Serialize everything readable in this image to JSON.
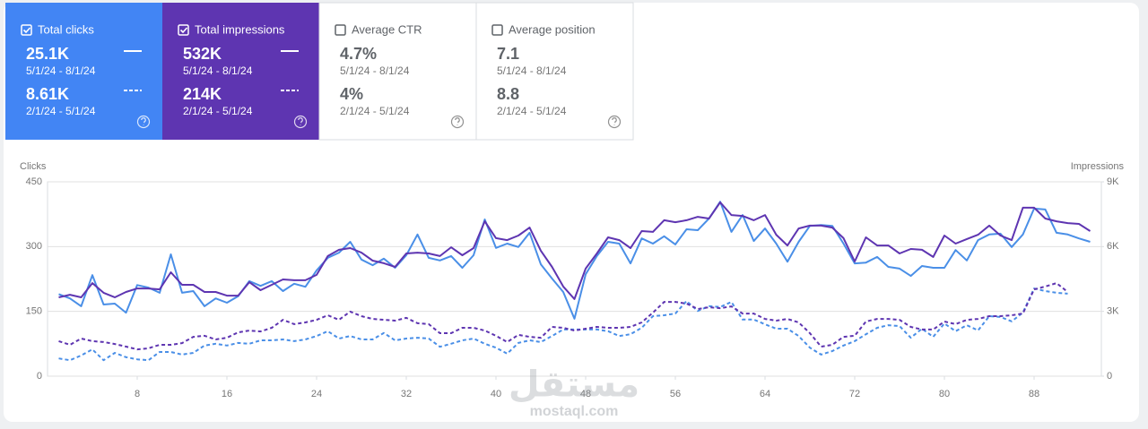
{
  "cards": [
    {
      "label": "Total clicks",
      "checked": true,
      "color": "#4285f4",
      "current": {
        "value": "25.1K",
        "range": "5/1/24 - 8/1/24"
      },
      "previous": {
        "value": "8.61K",
        "range": "2/1/24 - 5/1/24"
      }
    },
    {
      "label": "Total impressions",
      "checked": true,
      "color": "#5e35b1",
      "current": {
        "value": "532K",
        "range": "5/1/24 - 8/1/24"
      },
      "previous": {
        "value": "214K",
        "range": "2/1/24 - 5/1/24"
      }
    },
    {
      "label": "Average CTR",
      "checked": false,
      "color": "#ffffff",
      "current": {
        "value": "4.7%",
        "range": "5/1/24 - 8/1/24"
      },
      "previous": {
        "value": "4%",
        "range": "2/1/24 - 5/1/24"
      }
    },
    {
      "label": "Average position",
      "checked": false,
      "color": "#ffffff",
      "current": {
        "value": "7.1",
        "range": "5/1/24 - 8/1/24"
      },
      "previous": {
        "value": "8.8",
        "range": "2/1/24 - 5/1/24"
      }
    }
  ],
  "chart_data": {
    "type": "line",
    "ylabel": "Clicks",
    "y2label": "Impressions",
    "x": [
      1,
      2,
      3,
      4,
      5,
      6,
      7,
      8,
      9,
      10,
      11,
      12,
      13,
      14,
      15,
      16,
      17,
      18,
      19,
      20,
      21,
      22,
      23,
      24,
      25,
      26,
      27,
      28,
      29,
      30,
      31,
      32,
      33,
      34,
      35,
      36,
      37,
      38,
      39,
      40,
      41,
      42,
      43,
      44,
      45,
      46,
      47,
      48,
      49,
      50,
      51,
      52,
      53,
      54,
      55,
      56,
      57,
      58,
      59,
      60,
      61,
      62,
      63,
      64,
      65,
      66,
      67,
      68,
      69,
      70,
      71,
      72,
      73,
      74,
      75,
      76,
      77,
      78,
      79,
      80,
      81,
      82,
      83,
      84,
      85,
      86,
      87,
      88,
      89,
      90,
      91,
      92,
      93
    ],
    "xlim": [
      0,
      94
    ],
    "xticks": [
      8,
      16,
      24,
      32,
      40,
      48,
      56,
      64,
      72,
      80,
      88
    ],
    "ylim": [
      0,
      450
    ],
    "yticks": [
      0,
      150,
      300,
      450
    ],
    "y2lim": [
      0,
      9000
    ],
    "y2ticks": [
      {
        "value": 0,
        "label": "0"
      },
      {
        "value": 3000,
        "label": "3K"
      },
      {
        "value": 6000,
        "label": "6K"
      },
      {
        "value": 9000,
        "label": "9K"
      }
    ],
    "grid": true,
    "series": [
      {
        "color": "#4a8fe7",
        "dashed": true,
        "values": [
          41,
          37,
          48,
          62,
          37,
          54,
          44,
          39,
          37,
          56,
          56,
          50,
          54,
          71,
          75,
          71,
          77,
          75,
          83,
          83,
          85,
          81,
          85,
          93,
          104,
          87,
          93,
          85,
          85,
          100,
          83,
          87,
          89,
          87,
          68,
          75,
          83,
          87,
          75,
          66,
          52,
          77,
          83,
          79,
          93,
          108,
          108,
          108,
          108,
          104,
          93,
          97,
          112,
          139,
          141,
          145,
          174,
          151,
          162,
          160,
          172,
          131,
          131,
          120,
          110,
          110,
          93,
          66,
          50,
          58,
          71,
          81,
          97,
          112,
          118,
          116,
          89,
          110,
          91,
          122,
          104,
          118,
          106,
          139,
          137,
          127,
          147,
          203,
          197,
          193,
          191,
          null,
          null
        ]
      },
      {
        "color": "#5e35b1",
        "dashed": true,
        "axis": "y2",
        "values": [
          1620,
          1450,
          1740,
          1620,
          1580,
          1490,
          1370,
          1240,
          1290,
          1450,
          1450,
          1530,
          1820,
          1870,
          1700,
          1780,
          2030,
          2110,
          2070,
          2240,
          2610,
          2410,
          2490,
          2610,
          2820,
          2610,
          2990,
          2780,
          2650,
          2610,
          2570,
          2700,
          2450,
          2410,
          1990,
          1990,
          2240,
          2240,
          2110,
          1870,
          1580,
          1910,
          1820,
          1780,
          2280,
          2240,
          2110,
          2200,
          2280,
          2240,
          2240,
          2280,
          2490,
          2940,
          3440,
          3440,
          3360,
          3110,
          3190,
          3150,
          3230,
          2900,
          2900,
          2650,
          2570,
          2650,
          2490,
          1990,
          1370,
          1450,
          1820,
          1870,
          2530,
          2650,
          2650,
          2610,
          2280,
          2160,
          2160,
          2530,
          2410,
          2610,
          2650,
          2780,
          2780,
          2820,
          2900,
          4020,
          4150,
          4310,
          3900,
          null,
          null
        ]
      },
      {
        "color": "#4a8fe7",
        "dashed": false,
        "values": [
          190,
          180,
          162,
          234,
          166,
          168,
          147,
          211,
          205,
          193,
          282,
          193,
          197,
          162,
          180,
          170,
          185,
          220,
          209,
          220,
          197,
          214,
          207,
          245,
          274,
          286,
          311,
          270,
          257,
          272,
          251,
          280,
          328,
          274,
          268,
          278,
          251,
          280,
          363,
          297,
          307,
          299,
          332,
          259,
          226,
          195,
          133,
          236,
          278,
          311,
          307,
          261,
          319,
          307,
          324,
          305,
          340,
          338,
          365,
          404,
          334,
          373,
          313,
          342,
          307,
          265,
          311,
          348,
          350,
          348,
          307,
          261,
          263,
          276,
          253,
          249,
          232,
          255,
          251,
          251,
          292,
          268,
          315,
          328,
          330,
          299,
          328,
          388,
          386,
          332,
          328,
          319,
          311
        ]
      },
      {
        "color": "#5e35b1",
        "dashed": false,
        "axis": "y2",
        "values": [
          3650,
          3770,
          3650,
          4310,
          3860,
          3650,
          3900,
          4060,
          4060,
          4020,
          4810,
          4230,
          4230,
          3900,
          3900,
          3730,
          3730,
          4350,
          3980,
          4230,
          4480,
          4440,
          4440,
          4690,
          5560,
          5850,
          5930,
          5720,
          5350,
          5230,
          5060,
          5680,
          5720,
          5680,
          5560,
          5970,
          5600,
          5930,
          7170,
          6390,
          6300,
          6510,
          6880,
          5810,
          5060,
          4150,
          3570,
          4980,
          5680,
          6430,
          6300,
          5930,
          6720,
          6680,
          7220,
          7130,
          7220,
          7380,
          7300,
          8050,
          7460,
          7420,
          7220,
          7460,
          6550,
          6050,
          6840,
          6970,
          6970,
          6880,
          6390,
          5310,
          6430,
          6050,
          6050,
          5680,
          5890,
          5850,
          5520,
          6510,
          6140,
          6350,
          6550,
          6970,
          6510,
          6300,
          7800,
          7800,
          7300,
          7170,
          7090,
          7050,
          6720
        ]
      }
    ]
  },
  "watermark": {
    "logo": "مستقل",
    "site": "mostaql.com"
  }
}
